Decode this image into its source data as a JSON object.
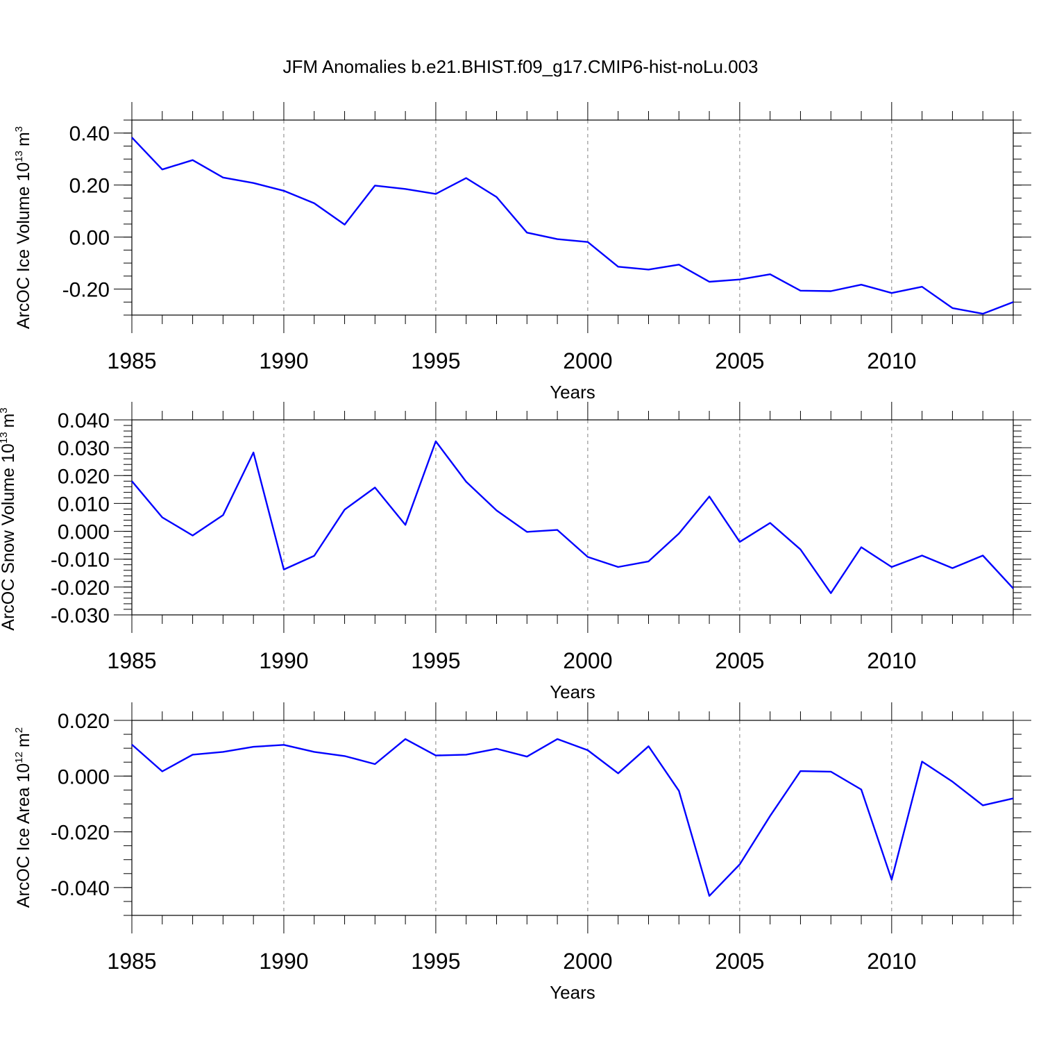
{
  "figure": {
    "title": "JFM Anomalies b.e21.BHIST.f09_g17.CMIP6-hist-noLu.003",
    "colors": {
      "series": "#0000ff",
      "axis": "#000000",
      "grid": "#808080",
      "background": "#ffffff"
    }
  },
  "chart_data": [
    {
      "type": "line",
      "ylabel_main": "ArcOC Ice Volume 10",
      "ylabel_exp": "13",
      "ylabel_unit": "m",
      "ylabel_unit_exp": "3",
      "xlabel": "Years",
      "xlim": [
        1985,
        2014
      ],
      "ylim": [
        -0.3,
        0.45
      ],
      "xticks": [
        "1985",
        "1990",
        "1995",
        "2000",
        "2005",
        "2010"
      ],
      "yticks": [
        {
          "value": 0.4,
          "label": "0.40"
        },
        {
          "value": 0.2,
          "label": "0.20"
        },
        {
          "value": 0.0,
          "label": "0.00"
        },
        {
          "value": -0.2,
          "label": "-0.20"
        }
      ],
      "yminor_step": 0.05,
      "x": [
        1985,
        1986,
        1987,
        1988,
        1989,
        1990,
        1991,
        1992,
        1993,
        1994,
        1995,
        1996,
        1997,
        1998,
        1999,
        2000,
        2001,
        2002,
        2003,
        2004,
        2005,
        2006,
        2007,
        2008,
        2009,
        2010,
        2011,
        2012,
        2013,
        2014
      ],
      "values": [
        0.383,
        0.26,
        0.296,
        0.229,
        0.208,
        0.178,
        0.13,
        0.048,
        0.198,
        0.185,
        0.166,
        0.227,
        0.154,
        0.017,
        -0.008,
        -0.019,
        -0.114,
        -0.125,
        -0.106,
        -0.172,
        -0.163,
        -0.143,
        -0.206,
        -0.208,
        -0.183,
        -0.215,
        -0.191,
        -0.273,
        -0.295,
        -0.25
      ]
    },
    {
      "type": "line",
      "ylabel_main": "ArcOC Snow Volume 10",
      "ylabel_exp": "13",
      "ylabel_unit": "m",
      "ylabel_unit_exp": "3",
      "xlabel": "Years",
      "xlim": [
        1985,
        2014
      ],
      "ylim": [
        -0.03,
        0.04
      ],
      "xticks": [
        "1985",
        "1990",
        "1995",
        "2000",
        "2005",
        "2010"
      ],
      "yticks": [
        {
          "value": 0.04,
          "label": "0.040"
        },
        {
          "value": 0.03,
          "label": "0.030"
        },
        {
          "value": 0.02,
          "label": "0.020"
        },
        {
          "value": 0.01,
          "label": "0.010"
        },
        {
          "value": 0.0,
          "label": "0.000"
        },
        {
          "value": -0.01,
          "label": "-0.010"
        },
        {
          "value": -0.02,
          "label": "-0.020"
        },
        {
          "value": -0.03,
          "label": "-0.030"
        }
      ],
      "yminor_step": 0.002,
      "x": [
        1985,
        1986,
        1987,
        1988,
        1989,
        1990,
        1991,
        1992,
        1993,
        1994,
        1995,
        1996,
        1997,
        1998,
        1999,
        2000,
        2001,
        2002,
        2003,
        2004,
        2005,
        2006,
        2007,
        2008,
        2009,
        2010,
        2011,
        2012,
        2013,
        2014
      ],
      "values": [
        0.018,
        0.005,
        -0.0015,
        0.0058,
        0.0283,
        -0.0137,
        -0.0088,
        0.0078,
        0.0157,
        0.0023,
        0.0323,
        0.0178,
        0.0075,
        -0.0002,
        0.0005,
        -0.0092,
        -0.0128,
        -0.0108,
        -0.0008,
        0.0125,
        -0.0038,
        0.003,
        -0.0065,
        -0.0222,
        -0.0057,
        -0.0128,
        -0.0087,
        -0.0132,
        -0.0087,
        -0.0205
      ]
    },
    {
      "type": "line",
      "ylabel_main": "ArcOC Ice Area 10",
      "ylabel_exp": "12",
      "ylabel_unit": "m",
      "ylabel_unit_exp": "2",
      "xlabel": "Years",
      "xlim": [
        1985,
        2014
      ],
      "ylim": [
        -0.05,
        0.02
      ],
      "xticks": [
        "1985",
        "1990",
        "1995",
        "2000",
        "2005",
        "2010"
      ],
      "yticks": [
        {
          "value": 0.02,
          "label": "0.020"
        },
        {
          "value": 0.0,
          "label": "0.000"
        },
        {
          "value": -0.02,
          "label": "-0.020"
        },
        {
          "value": -0.04,
          "label": "-0.040"
        }
      ],
      "yminor_step": 0.005,
      "x": [
        1985,
        1986,
        1987,
        1988,
        1989,
        1990,
        1991,
        1992,
        1993,
        1994,
        1995,
        1996,
        1997,
        1998,
        1999,
        2000,
        2001,
        2002,
        2003,
        2004,
        2005,
        2006,
        2007,
        2008,
        2009,
        2010,
        2011,
        2012,
        2013,
        2014
      ],
      "values": [
        0.0113,
        0.0017,
        0.0077,
        0.0087,
        0.0105,
        0.0112,
        0.0087,
        0.0072,
        0.0043,
        0.0133,
        0.0074,
        0.0077,
        0.0098,
        0.007,
        0.0133,
        0.0093,
        0.001,
        0.0107,
        -0.0053,
        -0.043,
        -0.0317,
        -0.0143,
        0.0018,
        0.0016,
        -0.0048,
        -0.0372,
        0.0052,
        -0.002,
        -0.0105,
        -0.008
      ]
    }
  ]
}
